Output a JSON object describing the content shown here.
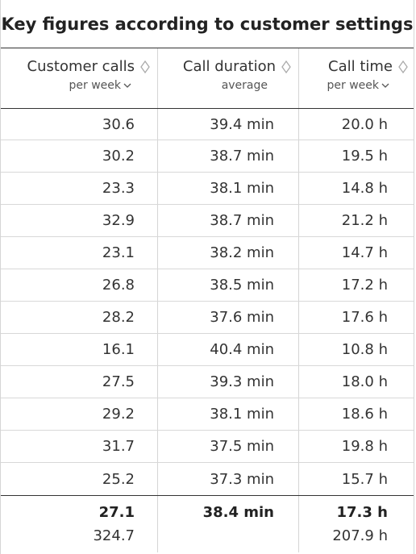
{
  "title": "Key figures according to customer settings",
  "columns": [
    {
      "label": "Customer calls",
      "sub": "per week",
      "sort_icon": "sort-diamond-icon",
      "sub_icon": "chevron-down-icon"
    },
    {
      "label": "Call duration",
      "sub": "average",
      "sort_icon": "sort-diamond-icon"
    },
    {
      "label": "Call time",
      "sub": "per week",
      "sort_icon": "sort-diamond-icon",
      "sub_icon": "chevron-down-icon"
    }
  ],
  "rows": [
    [
      "30.6",
      "39.4 min",
      "20.0 h"
    ],
    [
      "30.2",
      "38.7 min",
      "19.5 h"
    ],
    [
      "23.3",
      "38.1 min",
      "14.8 h"
    ],
    [
      "32.9",
      "38.7 min",
      "21.2 h"
    ],
    [
      "23.1",
      "38.2 min",
      "14.7 h"
    ],
    [
      "26.8",
      "38.5 min",
      "17.2 h"
    ],
    [
      "28.2",
      "37.6 min",
      "17.6 h"
    ],
    [
      "16.1",
      "40.4 min",
      "10.8 h"
    ],
    [
      "27.5",
      "39.3 min",
      "18.0 h"
    ],
    [
      "29.2",
      "38.1 min",
      "18.6 h"
    ],
    [
      "31.7",
      "37.5 min",
      "19.8 h"
    ],
    [
      "25.2",
      "37.3 min",
      "15.7 h"
    ]
  ],
  "footer": {
    "averages": [
      "27.1",
      "38.4 min",
      "17.3 h"
    ],
    "totals": [
      "324.7",
      "",
      "207.9 h"
    ]
  },
  "colors": {
    "border_strong": "#333333",
    "border_light": "#d8d8d8",
    "text": "#333333"
  }
}
